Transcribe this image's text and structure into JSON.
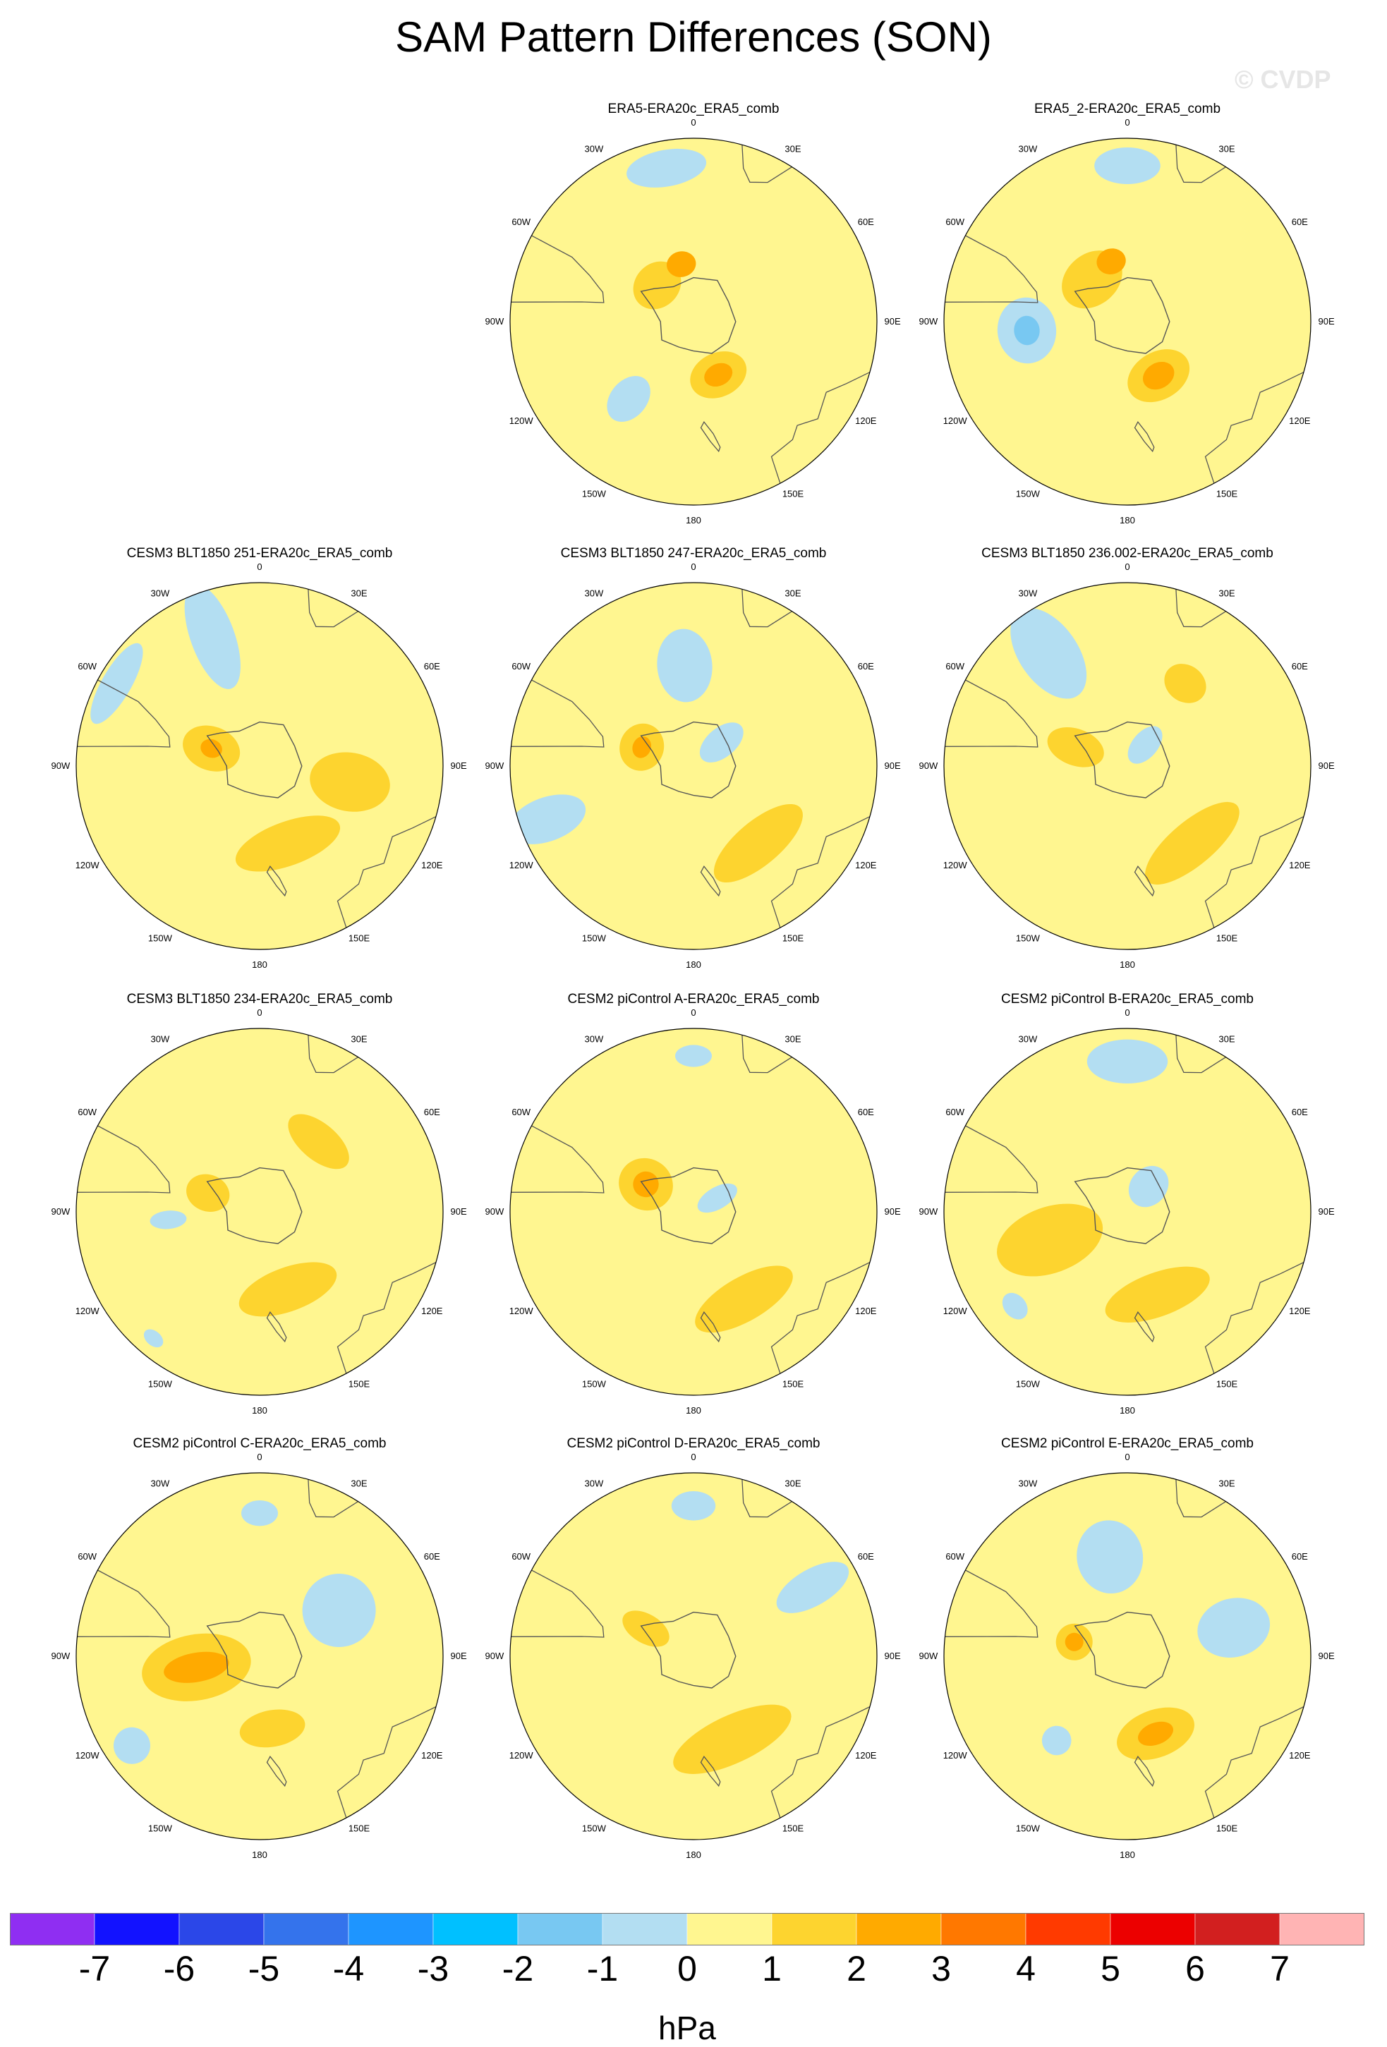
{
  "title": "SAM Pattern Differences (SON)",
  "watermark": "© CVDP",
  "panels": [
    {
      "title": "ERA5-ERA20c_ERA5_comb",
      "pattern": [
        {
          "kind": "pos",
          "level": 2,
          "az": -45,
          "r": 0.28,
          "rx": 0.14,
          "ry": 0.12
        },
        {
          "kind": "pos",
          "level": 3,
          "az": -12,
          "r": 0.32,
          "rx": 0.08,
          "ry": 0.07
        },
        {
          "kind": "pos",
          "level": 2,
          "az": 155,
          "r": 0.32,
          "rx": 0.16,
          "ry": 0.12
        },
        {
          "kind": "pos",
          "level": 3,
          "az": 155,
          "r": 0.32,
          "rx": 0.08,
          "ry": 0.06
        },
        {
          "kind": "neg",
          "level": 1,
          "az": -10,
          "r": 0.85,
          "rx": 0.22,
          "ry": 0.1
        },
        {
          "kind": "neg",
          "level": 1,
          "az": -140,
          "r": 0.55,
          "rx": 0.1,
          "ry": 0.14
        }
      ]
    },
    {
      "title": "ERA5_2-ERA20c_ERA5_comb",
      "pattern": [
        {
          "kind": "pos",
          "level": 2,
          "az": -40,
          "r": 0.3,
          "rx": 0.18,
          "ry": 0.14
        },
        {
          "kind": "pos",
          "level": 3,
          "az": -15,
          "r": 0.34,
          "rx": 0.08,
          "ry": 0.07
        },
        {
          "kind": "pos",
          "level": 2,
          "az": 150,
          "r": 0.34,
          "rx": 0.18,
          "ry": 0.13
        },
        {
          "kind": "pos",
          "level": 3,
          "az": 150,
          "r": 0.34,
          "rx": 0.09,
          "ry": 0.07
        },
        {
          "kind": "neg",
          "level": 1,
          "az": -95,
          "r": 0.55,
          "rx": 0.18,
          "ry": 0.16
        },
        {
          "kind": "neg",
          "level": 2,
          "az": -95,
          "r": 0.55,
          "rx": 0.08,
          "ry": 0.07
        },
        {
          "kind": "neg",
          "level": 1,
          "az": 0,
          "r": 0.85,
          "rx": 0.18,
          "ry": 0.1
        }
      ]
    },
    {
      "title": "CESM3 BLT1850 251-ERA20c_ERA5_comb",
      "pattern": [
        {
          "kind": "pos",
          "level": 2,
          "az": -70,
          "r": 0.28,
          "rx": 0.12,
          "ry": 0.16
        },
        {
          "kind": "pos",
          "level": 3,
          "az": -70,
          "r": 0.28,
          "rx": 0.05,
          "ry": 0.06
        },
        {
          "kind": "pos",
          "level": 2,
          "az": 160,
          "r": 0.45,
          "rx": 0.3,
          "ry": 0.12
        },
        {
          "kind": "pos",
          "level": 2,
          "az": 100,
          "r": 0.5,
          "rx": 0.16,
          "ry": 0.22
        },
        {
          "kind": "neg",
          "level": 1,
          "az": -20,
          "r": 0.75,
          "rx": 0.12,
          "ry": 0.3
        },
        {
          "kind": "neg",
          "level": 1,
          "az": -60,
          "r": 0.9,
          "rx": 0.25,
          "ry": 0.08
        }
      ]
    },
    {
      "title": "CESM3 BLT1850 247-ERA20c_ERA5_comb",
      "pattern": [
        {
          "kind": "pos",
          "level": 2,
          "az": -70,
          "r": 0.3,
          "rx": 0.13,
          "ry": 0.12
        },
        {
          "kind": "pos",
          "level": 3,
          "az": -70,
          "r": 0.3,
          "rx": 0.06,
          "ry": 0.05
        },
        {
          "kind": "pos",
          "level": 2,
          "az": 140,
          "r": 0.55,
          "rx": 0.3,
          "ry": 0.12
        },
        {
          "kind": "neg",
          "level": 1,
          "az": -5,
          "r": 0.55,
          "rx": 0.15,
          "ry": 0.2
        },
        {
          "kind": "neg",
          "level": 1,
          "az": 50,
          "r": 0.2,
          "rx": 0.08,
          "ry": 0.14
        },
        {
          "kind": "neg",
          "level": 1,
          "az": -110,
          "r": 0.85,
          "rx": 0.12,
          "ry": 0.22
        }
      ]
    },
    {
      "title": "CESM3 BLT1850 236.002-ERA20c_ERA5_comb",
      "pattern": [
        {
          "kind": "pos",
          "level": 2,
          "az": -70,
          "r": 0.3,
          "rx": 0.1,
          "ry": 0.16
        },
        {
          "kind": "pos",
          "level": 2,
          "az": 140,
          "r": 0.55,
          "rx": 0.32,
          "ry": 0.12
        },
        {
          "kind": "pos",
          "level": 2,
          "az": 35,
          "r": 0.55,
          "rx": 0.12,
          "ry": 0.1
        },
        {
          "kind": "neg",
          "level": 1,
          "az": -35,
          "r": 0.75,
          "rx": 0.16,
          "ry": 0.28
        },
        {
          "kind": "neg",
          "level": 1,
          "az": 40,
          "r": 0.15,
          "rx": 0.07,
          "ry": 0.12
        }
      ]
    },
    {
      "title": "CESM3 BLT1850 234-ERA20c_ERA5_comb",
      "pattern": [
        {
          "kind": "pos",
          "level": 2,
          "az": -70,
          "r": 0.3,
          "rx": 0.1,
          "ry": 0.12
        },
        {
          "kind": "pos",
          "level": 2,
          "az": 40,
          "r": 0.5,
          "rx": 0.2,
          "ry": 0.1
        },
        {
          "kind": "pos",
          "level": 2,
          "az": 160,
          "r": 0.45,
          "rx": 0.28,
          "ry": 0.12
        },
        {
          "kind": "neg",
          "level": 1,
          "az": -95,
          "r": 0.5,
          "rx": 0.05,
          "ry": 0.1
        },
        {
          "kind": "neg",
          "level": 1,
          "az": -140,
          "r": 0.9,
          "rx": 0.06,
          "ry": 0.04
        }
      ]
    },
    {
      "title": "CESM2 piControl A-ERA20c_ERA5_comb",
      "pattern": [
        {
          "kind": "pos",
          "level": 2,
          "az": -60,
          "r": 0.3,
          "rx": 0.14,
          "ry": 0.15
        },
        {
          "kind": "pos",
          "level": 3,
          "az": -60,
          "r": 0.3,
          "rx": 0.07,
          "ry": 0.07
        },
        {
          "kind": "pos",
          "level": 2,
          "az": 150,
          "r": 0.55,
          "rx": 0.3,
          "ry": 0.12
        },
        {
          "kind": "neg",
          "level": 1,
          "az": 0,
          "r": 0.85,
          "rx": 0.1,
          "ry": 0.06
        },
        {
          "kind": "neg",
          "level": 1,
          "az": 60,
          "r": 0.15,
          "rx": 0.06,
          "ry": 0.12
        }
      ]
    },
    {
      "title": "CESM2 piControl B-ERA20c_ERA5_comb",
      "pattern": [
        {
          "kind": "pos",
          "level": 2,
          "az": -110,
          "r": 0.45,
          "rx": 0.18,
          "ry": 0.3
        },
        {
          "kind": "pos",
          "level": 2,
          "az": 160,
          "r": 0.48,
          "rx": 0.3,
          "ry": 0.12
        },
        {
          "kind": "neg",
          "level": 1,
          "az": 0,
          "r": 0.82,
          "rx": 0.22,
          "ry": 0.12
        },
        {
          "kind": "neg",
          "level": 1,
          "az": 40,
          "r": 0.18,
          "rx": 0.1,
          "ry": 0.12
        },
        {
          "kind": "neg",
          "level": 1,
          "az": -130,
          "r": 0.8,
          "rx": 0.08,
          "ry": 0.06
        }
      ]
    },
    {
      "title": "CESM2 piControl C-ERA20c_ERA5_comb",
      "pattern": [
        {
          "kind": "pos",
          "level": 2,
          "az": -100,
          "r": 0.35,
          "rx": 0.18,
          "ry": 0.3
        },
        {
          "kind": "pos",
          "level": 3,
          "az": -100,
          "r": 0.35,
          "rx": 0.08,
          "ry": 0.18
        },
        {
          "kind": "pos",
          "level": 2,
          "az": 170,
          "r": 0.4,
          "rx": 0.18,
          "ry": 0.1
        },
        {
          "kind": "neg",
          "level": 1,
          "az": 60,
          "r": 0.5,
          "rx": 0.2,
          "ry": 0.2
        },
        {
          "kind": "neg",
          "level": 1,
          "az": 0,
          "r": 0.78,
          "rx": 0.1,
          "ry": 0.07
        },
        {
          "kind": "neg",
          "level": 1,
          "az": -125,
          "r": 0.85,
          "rx": 0.1,
          "ry": 0.1
        }
      ]
    },
    {
      "title": "CESM2 piControl D-ERA20c_ERA5_comb",
      "pattern": [
        {
          "kind": "pos",
          "level": 2,
          "az": -60,
          "r": 0.3,
          "rx": 0.08,
          "ry": 0.14
        },
        {
          "kind": "pos",
          "level": 2,
          "az": 155,
          "r": 0.5,
          "rx": 0.35,
          "ry": 0.13
        },
        {
          "kind": "neg",
          "level": 1,
          "az": 0,
          "r": 0.82,
          "rx": 0.12,
          "ry": 0.08
        },
        {
          "kind": "neg",
          "level": 1,
          "az": 60,
          "r": 0.75,
          "rx": 0.1,
          "ry": 0.22
        }
      ]
    },
    {
      "title": "CESM2 piControl E-ERA20c_ERA5_comb",
      "pattern": [
        {
          "kind": "pos",
          "level": 2,
          "az": -75,
          "r": 0.3,
          "rx": 0.1,
          "ry": 0.1
        },
        {
          "kind": "pos",
          "level": 3,
          "az": -75,
          "r": 0.3,
          "rx": 0.05,
          "ry": 0.05
        },
        {
          "kind": "pos",
          "level": 2,
          "az": 160,
          "r": 0.45,
          "rx": 0.22,
          "ry": 0.13
        },
        {
          "kind": "pos",
          "level": 3,
          "az": 160,
          "r": 0.45,
          "rx": 0.1,
          "ry": 0.06
        },
        {
          "kind": "neg",
          "level": 1,
          "az": -10,
          "r": 0.55,
          "rx": 0.18,
          "ry": 0.2
        },
        {
          "kind": "neg",
          "level": 1,
          "az": 75,
          "r": 0.6,
          "rx": 0.16,
          "ry": 0.2
        },
        {
          "kind": "neg",
          "level": 1,
          "az": -140,
          "r": 0.6,
          "rx": 0.08,
          "ry": 0.08
        }
      ]
    }
  ],
  "lon_labels": [
    "0",
    "30E",
    "60E",
    "90E",
    "120E",
    "150E",
    "180",
    "150W",
    "120W",
    "90W",
    "60W",
    "30W"
  ],
  "colorbar": {
    "ticks": [
      "-7",
      "-6",
      "-5",
      "-4",
      "-3",
      "-2",
      "-1",
      "0",
      "1",
      "2",
      "3",
      "4",
      "5",
      "6",
      "7"
    ],
    "colors": [
      "#8f2ef2",
      "#1212ff",
      "#2b47e8",
      "#3473ec",
      "#1e95ff",
      "#00c0ff",
      "#78c8f2",
      "#b3def2",
      "#fff690",
      "#fdd42f",
      "#ffaa00",
      "#ff7800",
      "#ff3a00",
      "#ec0000",
      "#d21f1f",
      "#ffb4b4"
    ],
    "units": "hPa"
  }
}
